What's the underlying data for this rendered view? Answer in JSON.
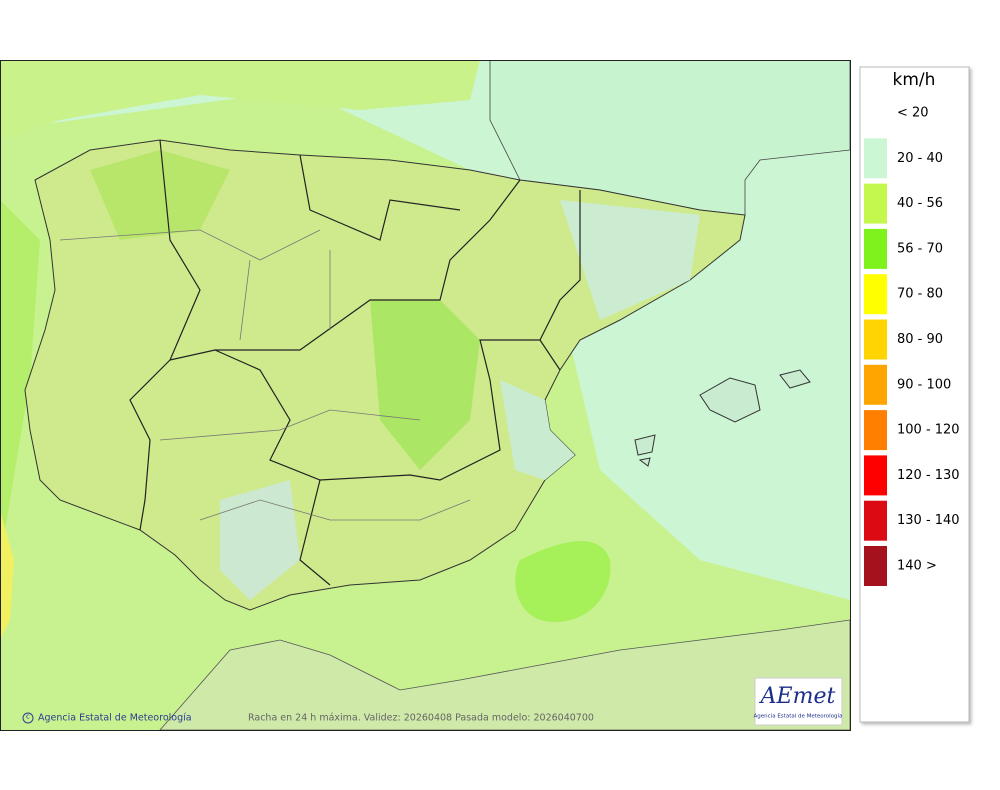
{
  "map": {
    "credit": "Agencia Estatal de Meteorología",
    "caption": "Racha en 24 h máxima. Validez: 20260408 Pasada modelo: 2026040700"
  },
  "logo": {
    "name": "AEmet",
    "subtitle": "Agencia Estatal de Meteorología"
  },
  "legend": {
    "title": "km/h",
    "items": [
      {
        "label": "< 20"
      },
      {
        "label": "20 - 40",
        "color": "#ccf7d4"
      },
      {
        "label": "40 - 56",
        "color": "#c4f84c"
      },
      {
        "label": "56 - 70",
        "color": "#7ef21c"
      },
      {
        "label": "70 - 80",
        "color": "#ffff00"
      },
      {
        "label": "80 - 90",
        "color": "#ffd400"
      },
      {
        "label": "90 - 100",
        "color": "#ffa500"
      },
      {
        "label": "100 - 120",
        "color": "#ff8000"
      },
      {
        "label": "120 - 130",
        "color": "#ff0000"
      },
      {
        "label": "130 - 140",
        "color": "#dc0a12"
      },
      {
        "label": "140 >",
        "color": "#a5121e"
      }
    ]
  }
}
